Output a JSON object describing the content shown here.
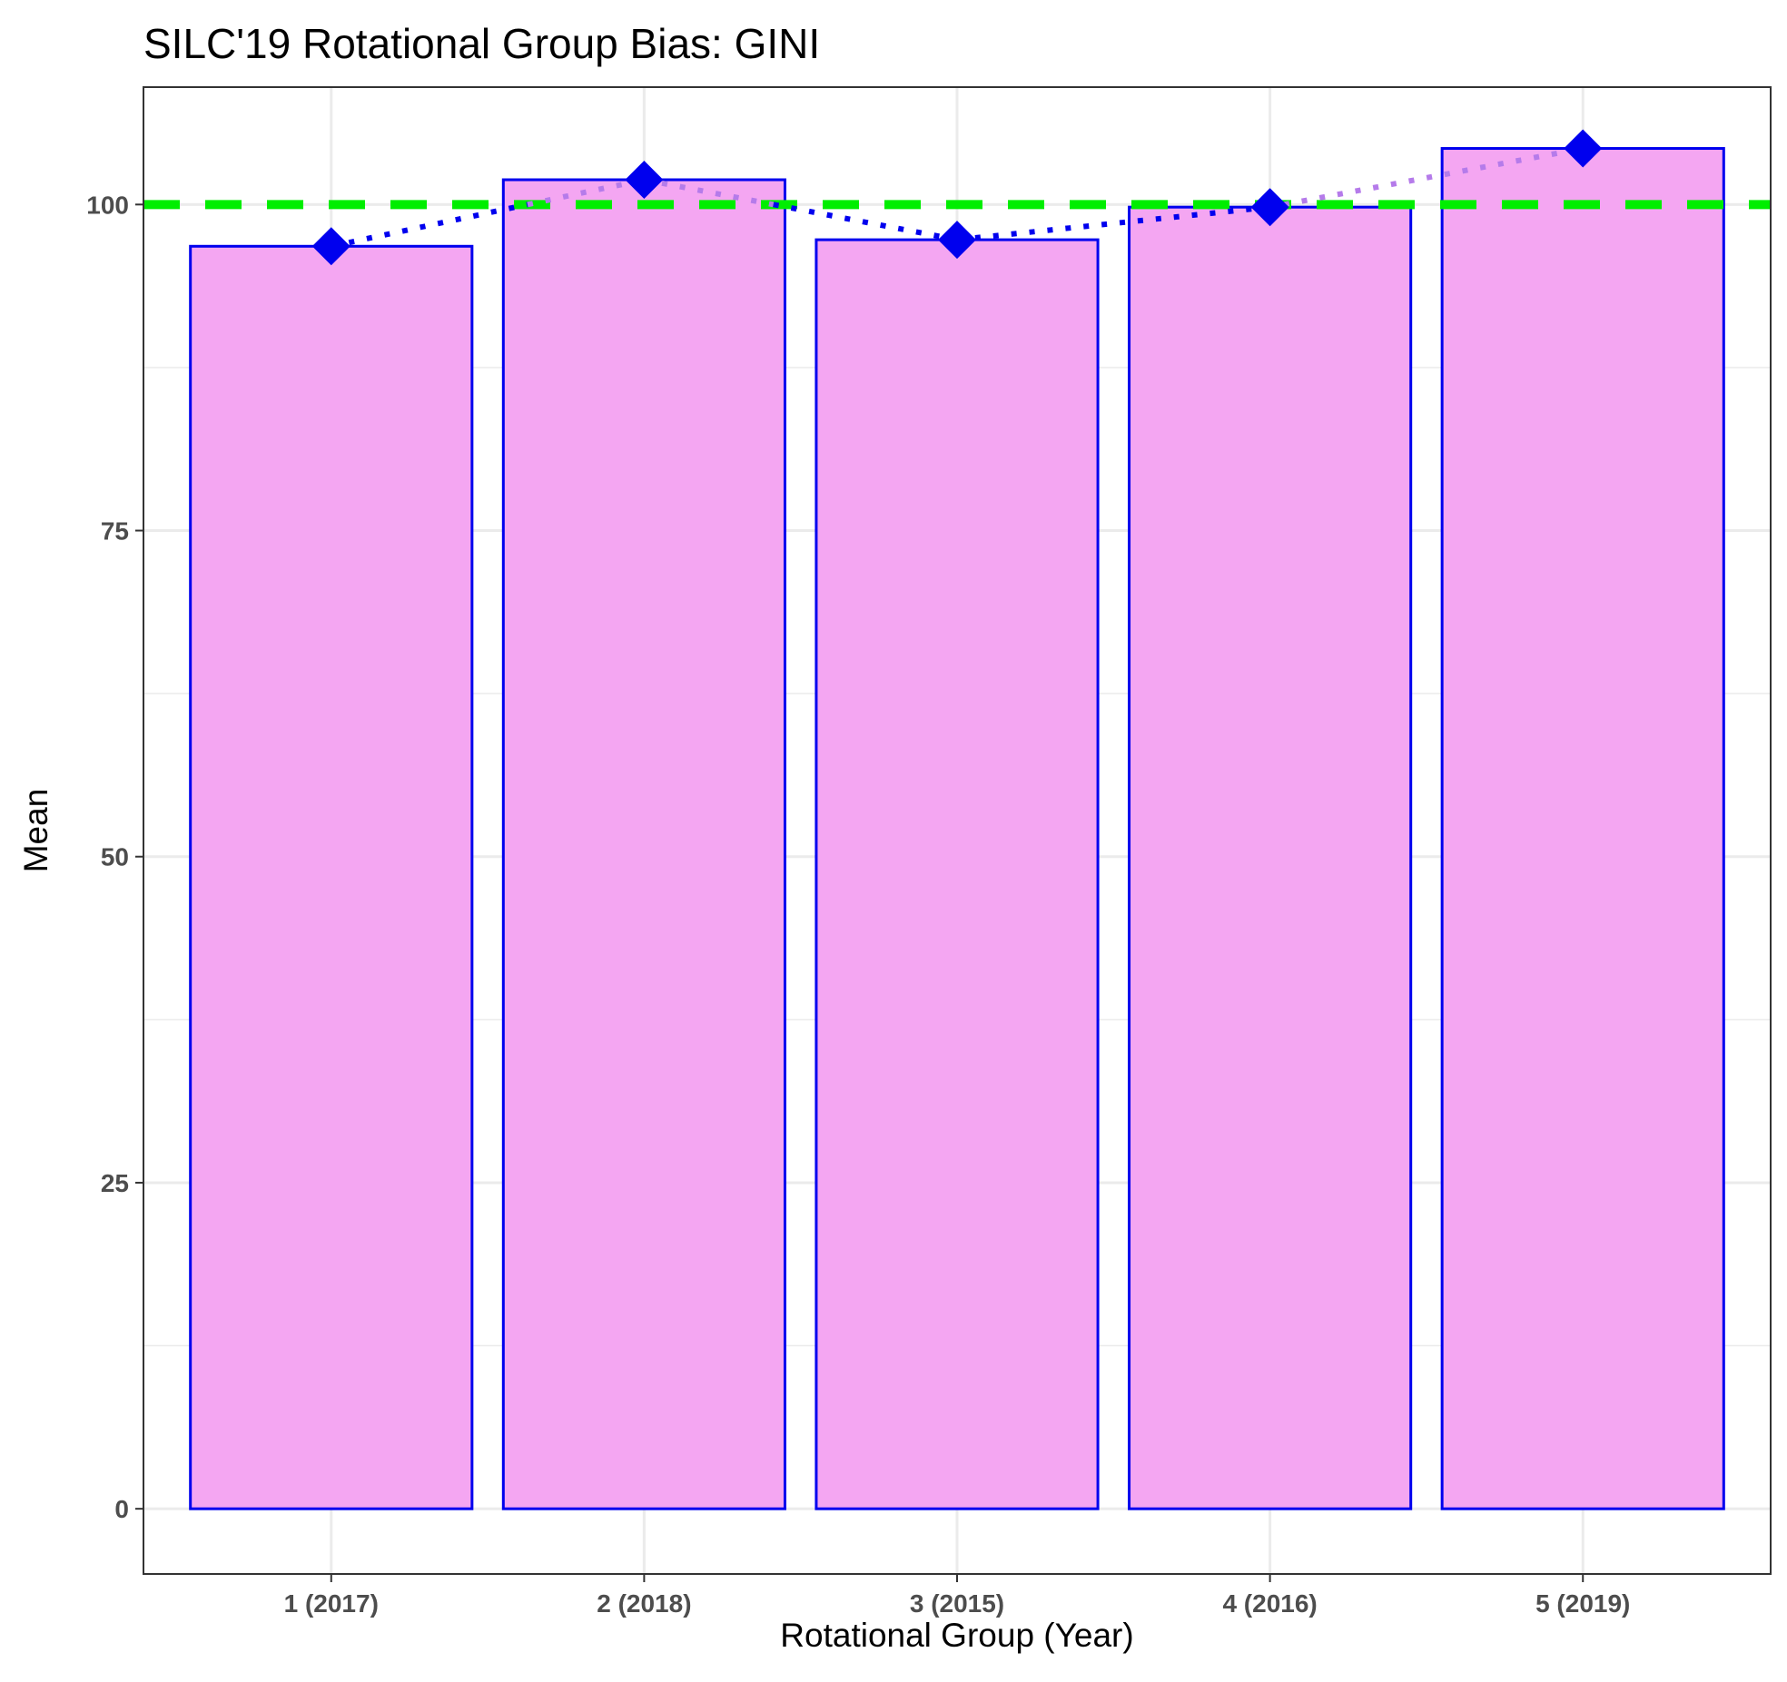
{
  "chart_data": {
    "type": "bar",
    "title": "SILC'19 Rotational Group Bias: GINI",
    "xlabel": "Rotational Group (Year)",
    "ylabel": "Mean",
    "categories": [
      "1 (2017)",
      "2 (2018)",
      "3 (2015)",
      "4 (2016)",
      "5 (2019)"
    ],
    "values": [
      96.8,
      101.9,
      97.3,
      99.8,
      104.3
    ],
    "ylim": [
      -5,
      109
    ],
    "yticks": [
      0,
      25,
      50,
      75,
      100
    ],
    "reference_line": 100,
    "grid": true,
    "legend": "none",
    "colors": {
      "bar_fill": "#f4a6f2",
      "bar_stroke": "#0000ee",
      "marker": "#0000ee",
      "line_below_ref": "#0000ee",
      "line_above_ref": "#b57bea",
      "reference_line": "#00ee00",
      "grid": "#ebebeb",
      "panel_border": "#333333"
    }
  }
}
